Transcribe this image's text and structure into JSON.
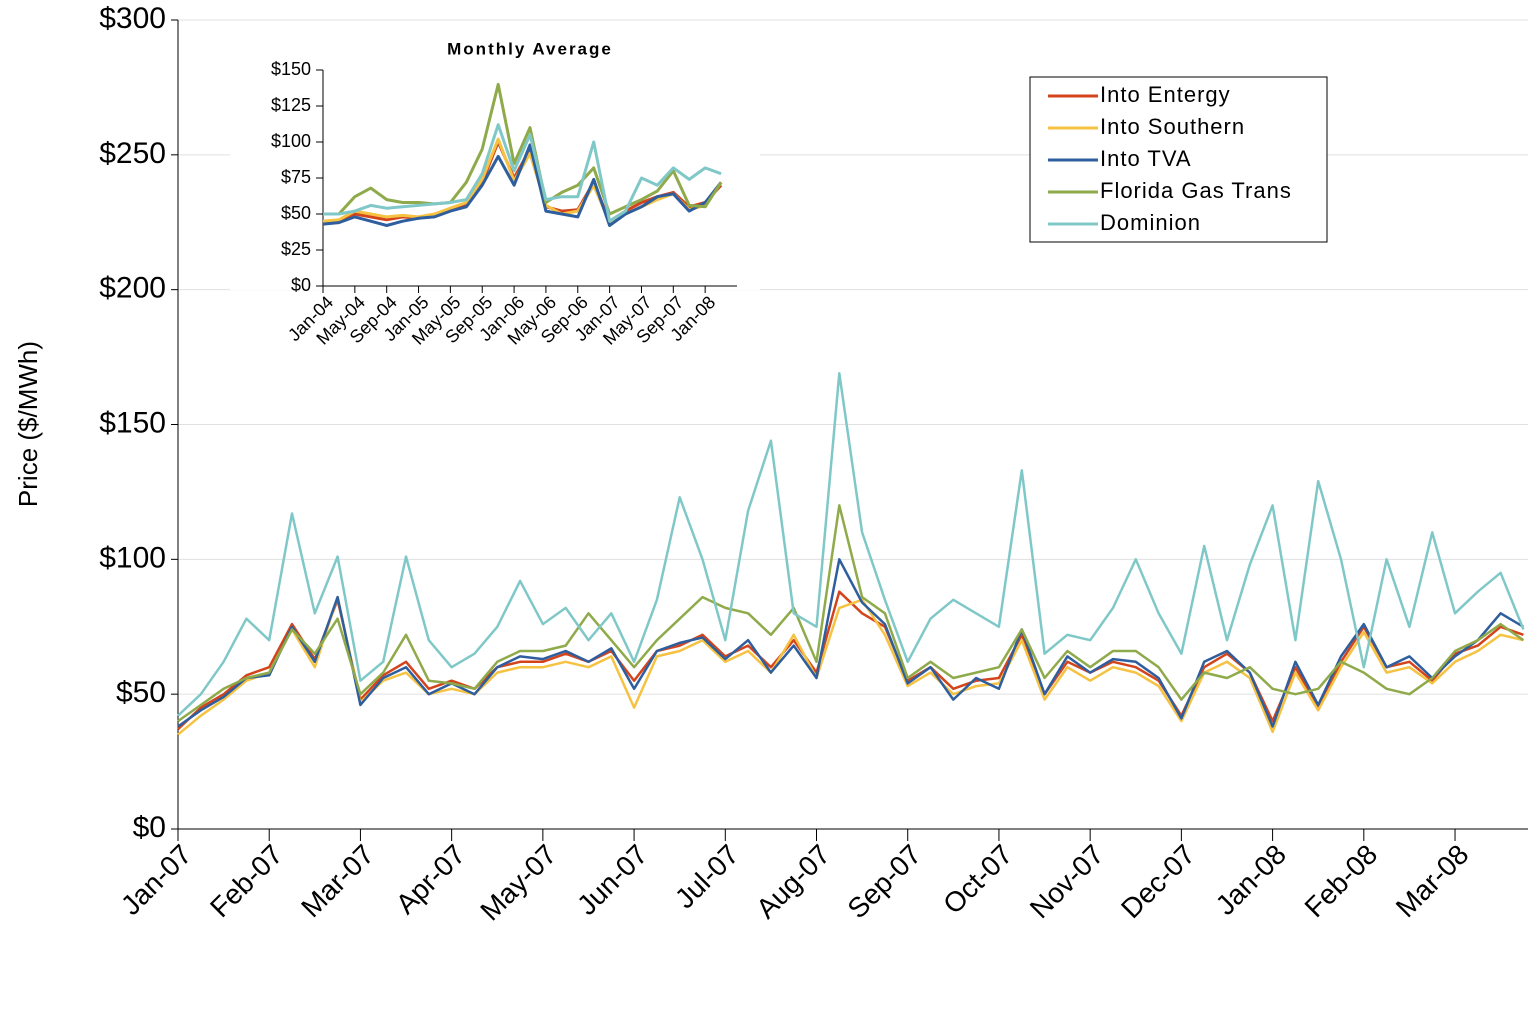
{
  "chart_data": [
    {
      "type": "line",
      "y_label": "Price ($/MWh)",
      "xlim": [
        0,
        14.8
      ],
      "x": [
        0,
        0.25,
        0.5,
        0.75,
        1,
        1.25,
        1.5,
        1.75,
        2,
        2.25,
        2.5,
        2.75,
        3,
        3.25,
        3.5,
        3.75,
        4,
        4.25,
        4.5,
        4.75,
        5,
        5.25,
        5.5,
        5.75,
        6,
        6.25,
        6.5,
        6.75,
        7,
        7.25,
        7.5,
        7.75,
        8,
        8.25,
        8.5,
        8.75,
        9,
        9.25,
        9.5,
        9.75,
        10,
        10.25,
        10.5,
        10.75,
        11,
        11.25,
        11.5,
        11.75,
        12,
        12.25,
        12.5,
        12.75,
        13,
        13.25,
        13.5,
        13.75,
        14,
        14.25,
        14.5,
        14.75
      ],
      "xticks": [
        {
          "value": 0,
          "label": "Jan-07"
        },
        {
          "value": 1,
          "label": "Feb-07"
        },
        {
          "value": 2,
          "label": "Mar-07"
        },
        {
          "value": 3,
          "label": "Apr-07"
        },
        {
          "value": 4,
          "label": "May-07"
        },
        {
          "value": 5,
          "label": "Jun-07"
        },
        {
          "value": 6,
          "label": "Jul-07"
        },
        {
          "value": 7,
          "label": "Aug-07"
        },
        {
          "value": 8,
          "label": "Sep-07"
        },
        {
          "value": 9,
          "label": "Oct-07"
        },
        {
          "value": 10,
          "label": "Nov-07"
        },
        {
          "value": 11,
          "label": "Dec-07"
        },
        {
          "value": 12,
          "label": "Jan-08"
        },
        {
          "value": 13,
          "label": "Feb-08"
        },
        {
          "value": 14,
          "label": "Mar-08"
        }
      ],
      "ylim": [
        0,
        300
      ],
      "yticks": [
        {
          "value": 0,
          "label": "$0"
        },
        {
          "value": 50,
          "label": "$50"
        },
        {
          "value": 100,
          "label": "$100"
        },
        {
          "value": 150,
          "label": "$150"
        },
        {
          "value": 200,
          "label": "$200"
        },
        {
          "value": 250,
          "label": "$250"
        },
        {
          "value": 300,
          "label": "$300"
        }
      ],
      "grid": true,
      "legend": "upper right",
      "series": [
        {
          "name": "Into Entergy",
          "color": "#d4441c",
          "values": [
            37,
            45,
            50,
            57,
            60,
            76,
            63,
            85,
            48,
            57,
            62,
            52,
            55,
            52,
            60,
            62,
            62,
            65,
            62,
            66,
            55,
            66,
            68,
            72,
            64,
            68,
            60,
            70,
            58,
            88,
            80,
            75,
            55,
            60,
            52,
            55,
            56,
            72,
            50,
            62,
            58,
            62,
            60,
            55,
            42,
            60,
            65,
            58,
            40,
            60,
            45,
            62,
            75,
            60,
            62,
            55,
            65,
            68,
            75,
            72
          ]
        },
        {
          "name": "Into Southern",
          "color": "#f5c242",
          "values": [
            35,
            42,
            48,
            55,
            58,
            74,
            60,
            86,
            47,
            55,
            58,
            50,
            52,
            50,
            58,
            60,
            60,
            62,
            60,
            64,
            45,
            64,
            66,
            70,
            62,
            66,
            58,
            72,
            56,
            82,
            85,
            72,
            53,
            58,
            50,
            53,
            54,
            70,
            48,
            60,
            55,
            60,
            58,
            53,
            40,
            58,
            62,
            56,
            36,
            58,
            44,
            60,
            73,
            58,
            60,
            54,
            62,
            66,
            72,
            70
          ]
        },
        {
          "name": "Into TVA",
          "color": "#2e5e9e",
          "values": [
            38,
            44,
            49,
            56,
            57,
            75,
            62,
            86,
            46,
            56,
            60,
            50,
            54,
            50,
            60,
            64,
            63,
            66,
            62,
            67,
            52,
            66,
            69,
            71,
            63,
            70,
            58,
            68,
            56,
            100,
            84,
            76,
            54,
            60,
            48,
            56,
            52,
            74,
            50,
            64,
            58,
            63,
            62,
            56,
            41,
            62,
            66,
            58,
            38,
            62,
            46,
            64,
            76,
            60,
            64,
            56,
            64,
            70,
            80,
            75
          ]
        },
        {
          "name": "Florida Gas Trans",
          "color": "#8faa4a",
          "values": [
            40,
            46,
            52,
            56,
            58,
            74,
            65,
            78,
            50,
            58,
            72,
            55,
            54,
            52,
            62,
            66,
            66,
            68,
            80,
            70,
            60,
            70,
            78,
            86,
            82,
            80,
            72,
            82,
            62,
            120,
            86,
            80,
            56,
            62,
            56,
            58,
            60,
            74,
            56,
            66,
            60,
            66,
            66,
            60,
            48,
            58,
            56,
            60,
            52,
            50,
            52,
            62,
            58,
            52,
            50,
            56,
            66,
            70,
            76,
            70
          ]
        },
        {
          "name": "Dominion",
          "color": "#80c8c8",
          "values": [
            42,
            50,
            62,
            78,
            70,
            117,
            80,
            101,
            55,
            62,
            101,
            70,
            60,
            65,
            75,
            92,
            76,
            82,
            70,
            80,
            62,
            85,
            123,
            100,
            70,
            118,
            144,
            80,
            75,
            169,
            110,
            85,
            62,
            78,
            85,
            80,
            75,
            133,
            65,
            72,
            70,
            82,
            100,
            80,
            65,
            105,
            70,
            98,
            120,
            70,
            129,
            100,
            60,
            100,
            75,
            110,
            80,
            88,
            95,
            74
          ]
        }
      ]
    },
    {
      "type": "line",
      "title": "Monthly Average",
      "xlim": [
        0,
        52
      ],
      "x": [
        0,
        2,
        4,
        6,
        8,
        10,
        12,
        14,
        16,
        18,
        20,
        22,
        24,
        26,
        28,
        30,
        32,
        34,
        36,
        38,
        40,
        42,
        44,
        46,
        48,
        50
      ],
      "xticks": [
        {
          "value": 0,
          "label": "Jan-04"
        },
        {
          "value": 4,
          "label": "May-04"
        },
        {
          "value": 8,
          "label": "Sep-04"
        },
        {
          "value": 12,
          "label": "Jan-05"
        },
        {
          "value": 16,
          "label": "May-05"
        },
        {
          "value": 20,
          "label": "Sep-05"
        },
        {
          "value": 24,
          "label": "Jan-06"
        },
        {
          "value": 28,
          "label": "May-06"
        },
        {
          "value": 32,
          "label": "Sep-06"
        },
        {
          "value": 36,
          "label": "Jan-07"
        },
        {
          "value": 40,
          "label": "May-07"
        },
        {
          "value": 44,
          "label": "Sep-07"
        },
        {
          "value": 48,
          "label": "Jan-08"
        }
      ],
      "ylim": [
        0,
        150
      ],
      "yticks": [
        {
          "value": 0,
          "label": "$0"
        },
        {
          "value": 25,
          "label": "$25"
        },
        {
          "value": 50,
          "label": "$50"
        },
        {
          "value": 75,
          "label": "$75"
        },
        {
          "value": 100,
          "label": "$100"
        },
        {
          "value": 125,
          "label": "$125"
        },
        {
          "value": 150,
          "label": "$150"
        }
      ],
      "series": [
        {
          "color": "#d4441c",
          "values": [
            44,
            45,
            50,
            48,
            46,
            48,
            47,
            49,
            53,
            56,
            72,
            100,
            75,
            95,
            55,
            52,
            53,
            72,
            45,
            52,
            58,
            62,
            65,
            55,
            58,
            70
          ]
        },
        {
          "color": "#f5c242",
          "values": [
            45,
            46,
            52,
            50,
            48,
            49,
            48,
            50,
            54,
            58,
            74,
            102,
            73,
            92,
            56,
            50,
            52,
            70,
            44,
            50,
            55,
            60,
            64,
            53,
            56,
            72
          ]
        },
        {
          "color": "#2e5e9e",
          "values": [
            43,
            44,
            48,
            45,
            42,
            45,
            47,
            48,
            52,
            55,
            70,
            90,
            70,
            98,
            52,
            50,
            48,
            74,
            42,
            50,
            55,
            62,
            64,
            52,
            58,
            72
          ]
        },
        {
          "color": "#8faa4a",
          "values": [
            50,
            50,
            62,
            68,
            60,
            58,
            58,
            57,
            58,
            72,
            95,
            140,
            85,
            110,
            58,
            65,
            70,
            82,
            50,
            55,
            60,
            66,
            80,
            56,
            55,
            72
          ]
        },
        {
          "color": "#80c8c8",
          "values": [
            50,
            50,
            52,
            56,
            54,
            55,
            56,
            57,
            58,
            60,
            78,
            112,
            80,
            105,
            60,
            62,
            62,
            100,
            45,
            52,
            75,
            70,
            82,
            74,
            82,
            78
          ]
        }
      ]
    }
  ]
}
